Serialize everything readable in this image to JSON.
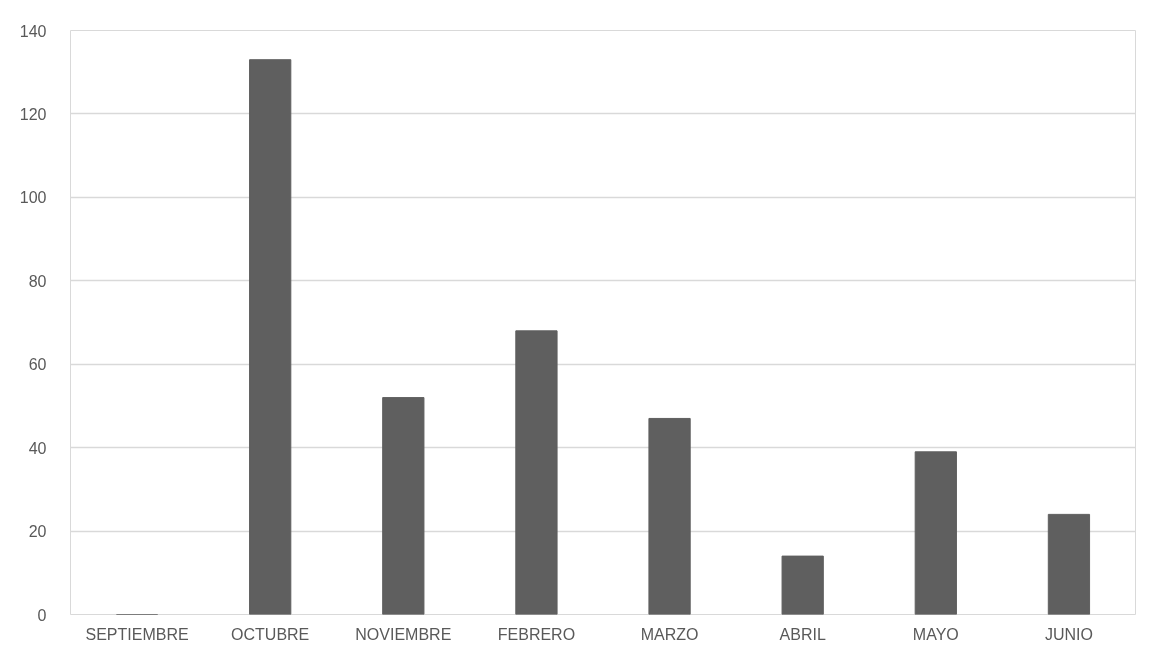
{
  "chart_data": {
    "type": "bar",
    "categories": [
      "SEPTIEMBRE",
      "OCTUBRE",
      "NOVIEMBRE",
      "FEBRERO",
      "MARZO",
      "ABRIL",
      "MAYO",
      "JUNIO"
    ],
    "values": [
      0,
      133,
      52,
      68,
      47,
      14,
      39,
      24
    ],
    "color": "#5f5f5f",
    "ylim": [
      0,
      140
    ],
    "yticks": [
      0,
      20,
      40,
      60,
      80,
      100,
      120,
      140
    ],
    "grid": "y"
  }
}
